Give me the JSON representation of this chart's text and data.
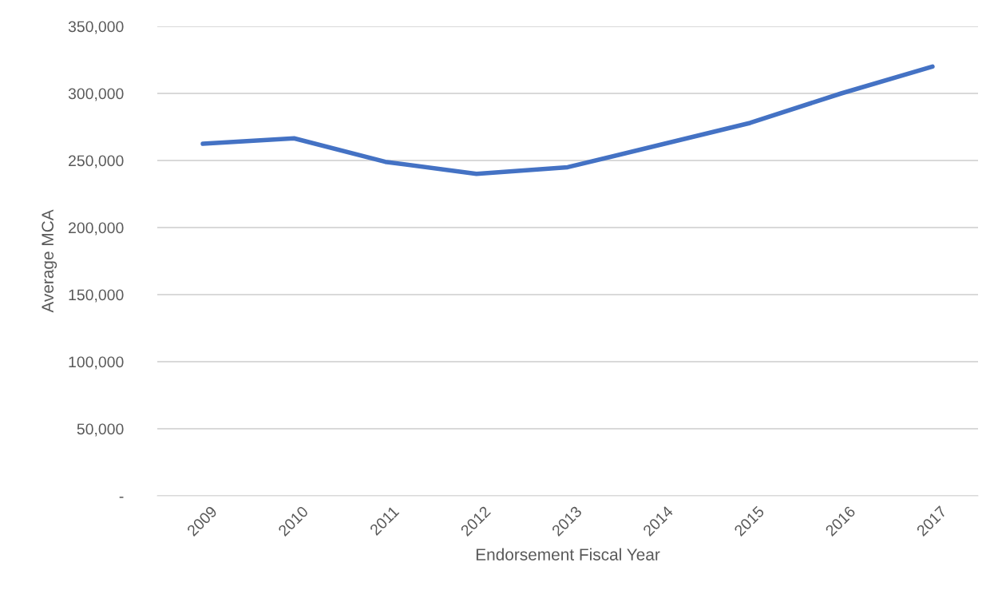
{
  "chart_data": {
    "type": "line",
    "xlabel": "Endorsement Fiscal Year",
    "ylabel": "Average MCA",
    "categories": [
      "2009",
      "2010",
      "2011",
      "2012",
      "2013",
      "2014",
      "2015",
      "2016",
      "2017"
    ],
    "series": [
      {
        "color": "#4472c4",
        "values": [
          262500,
          266500,
          249000,
          240000,
          245000,
          261500,
          278000,
          300000,
          320000
        ]
      }
    ],
    "ylim": [
      0,
      350000
    ],
    "yticks": [
      {
        "value": 0,
        "label": "-"
      },
      {
        "value": 50000,
        "label": "50,000"
      },
      {
        "value": 100000,
        "label": "100,000"
      },
      {
        "value": 150000,
        "label": "150,000"
      },
      {
        "value": 200000,
        "label": "200,000"
      },
      {
        "value": 250000,
        "label": "250,000"
      },
      {
        "value": 300000,
        "label": "300,000"
      },
      {
        "value": 350000,
        "label": "350,000"
      }
    ],
    "grid": "y",
    "marker": "none",
    "line_style": "solid"
  }
}
